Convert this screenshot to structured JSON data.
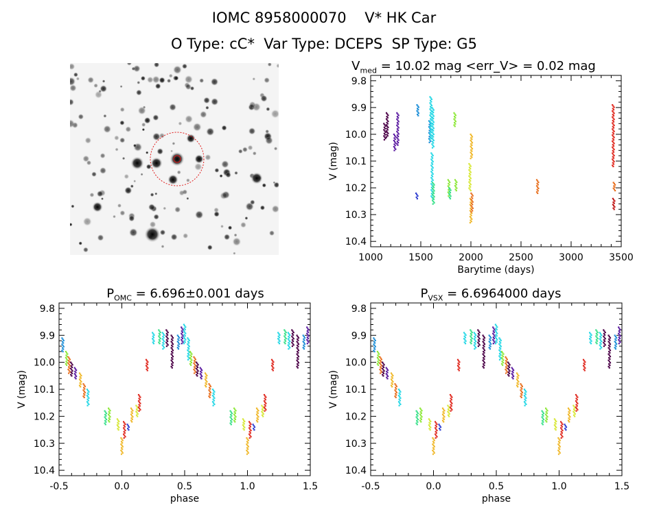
{
  "header": {
    "title_line1": "IOMC 8958000070    V* HK Car",
    "title_line2": "O Type: cC*  Var Type: DCEPS  SP Type: G5"
  },
  "colors": {
    "palette": [
      "#4a0046",
      "#5a1aa0",
      "#2a3ad0",
      "#1f8fd8",
      "#27d8e6",
      "#39e08a",
      "#8ee83a",
      "#d8e83a",
      "#f0b82a",
      "#e87020",
      "#e02a20",
      "#c01818"
    ],
    "reticle": "#e01a1a"
  },
  "chart_data": [
    {
      "type": "scatter",
      "panel": "lightcurve",
      "title_main": "V",
      "title_sub": "med",
      "title_rest": " = 10.02 mag <err_V> = 0.02 mag",
      "xlabel": "Barytime (days)",
      "ylabel": "V (mag)",
      "xlim": [
        1000,
        3500
      ],
      "ylim": [
        10.42,
        9.78
      ],
      "xticks": [
        1000,
        1500,
        2000,
        2500,
        3000,
        3500
      ],
      "yticks": [
        9.8,
        9.9,
        10.0,
        10.1,
        10.2,
        10.3,
        10.4
      ],
      "groups": [
        {
          "x": 1140,
          "ymin": 9.96,
          "ymax": 10.02,
          "c": 0
        },
        {
          "x": 1165,
          "ymin": 9.92,
          "ymax": 10.01,
          "c": 0
        },
        {
          "x": 1240,
          "ymin": 10.0,
          "ymax": 10.06,
          "c": 1
        },
        {
          "x": 1270,
          "ymin": 9.92,
          "ymax": 10.04,
          "c": 1
        },
        {
          "x": 1460,
          "ymin": 10.22,
          "ymax": 10.24,
          "c": 2
        },
        {
          "x": 1470,
          "ymin": 9.89,
          "ymax": 9.93,
          "c": 3
        },
        {
          "x": 1590,
          "ymin": 9.95,
          "ymax": 10.03,
          "c": 3
        },
        {
          "x": 1600,
          "ymin": 9.86,
          "ymax": 10.02,
          "c": 4
        },
        {
          "x": 1612,
          "ymin": 10.07,
          "ymax": 10.24,
          "c": 4
        },
        {
          "x": 1620,
          "ymin": 9.9,
          "ymax": 10.05,
          "c": 4
        },
        {
          "x": 1625,
          "ymin": 10.18,
          "ymax": 10.26,
          "c": 5
        },
        {
          "x": 1780,
          "ymin": 10.17,
          "ymax": 10.23,
          "c": 6
        },
        {
          "x": 1790,
          "ymin": 10.2,
          "ymax": 10.24,
          "c": 5
        },
        {
          "x": 1840,
          "ymin": 9.92,
          "ymax": 9.97,
          "c": 6
        },
        {
          "x": 1850,
          "ymin": 10.17,
          "ymax": 10.21,
          "c": 6
        },
        {
          "x": 1990,
          "ymin": 10.11,
          "ymax": 10.21,
          "c": 7
        },
        {
          "x": 2000,
          "ymin": 10.24,
          "ymax": 10.33,
          "c": 8
        },
        {
          "x": 2005,
          "ymin": 10.0,
          "ymax": 10.09,
          "c": 8
        },
        {
          "x": 2010,
          "ymin": 10.22,
          "ymax": 10.29,
          "c": 9
        },
        {
          "x": 2665,
          "ymin": 10.17,
          "ymax": 10.22,
          "c": 9
        },
        {
          "x": 3420,
          "ymin": 9.89,
          "ymax": 10.12,
          "c": 10
        },
        {
          "x": 3425,
          "ymin": 10.24,
          "ymax": 10.28,
          "c": 11
        },
        {
          "x": 3430,
          "ymin": 10.18,
          "ymax": 10.21,
          "c": 9
        }
      ]
    },
    {
      "type": "scatter",
      "panel": "phase_omc",
      "title_main": "P",
      "title_sub": "OMC",
      "title_rest": " = 6.696±0.001 days",
      "xlabel": "phase",
      "ylabel": "V (mag)",
      "xlim": [
        -0.5,
        1.5
      ],
      "ylim": [
        10.42,
        9.78
      ],
      "xticks": [
        -0.5,
        0.0,
        0.5,
        1.0,
        1.5
      ],
      "yticks": [
        9.8,
        9.9,
        10.0,
        10.1,
        10.2,
        10.3,
        10.4
      ],
      "groups": [
        {
          "x": -0.47,
          "ymin": 9.91,
          "ymax": 9.96,
          "c": 3
        },
        {
          "x": -0.44,
          "ymin": 9.96,
          "ymax": 10.01,
          "c": 6
        },
        {
          "x": -0.42,
          "ymin": 9.98,
          "ymax": 10.04,
          "c": 9
        },
        {
          "x": -0.4,
          "ymin": 10.0,
          "ymax": 10.05,
          "c": 0
        },
        {
          "x": -0.37,
          "ymin": 10.02,
          "ymax": 10.06,
          "c": 1
        },
        {
          "x": -0.33,
          "ymin": 10.04,
          "ymax": 10.09,
          "c": 8
        },
        {
          "x": -0.3,
          "ymin": 10.08,
          "ymax": 10.13,
          "c": 9
        },
        {
          "x": -0.27,
          "ymin": 10.1,
          "ymax": 10.16,
          "c": 4
        },
        {
          "x": -0.13,
          "ymin": 10.18,
          "ymax": 10.23,
          "c": 5
        },
        {
          "x": -0.1,
          "ymin": 10.17,
          "ymax": 10.22,
          "c": 6
        },
        {
          "x": -0.03,
          "ymin": 10.21,
          "ymax": 10.25,
          "c": 7
        },
        {
          "x": 0.0,
          "ymin": 10.28,
          "ymax": 10.34,
          "c": 8
        },
        {
          "x": 0.02,
          "ymin": 10.22,
          "ymax": 10.28,
          "c": 10
        },
        {
          "x": 0.05,
          "ymin": 10.23,
          "ymax": 10.25,
          "c": 2
        },
        {
          "x": 0.08,
          "ymin": 10.17,
          "ymax": 10.22,
          "c": 8
        },
        {
          "x": 0.12,
          "ymin": 10.16,
          "ymax": 10.2,
          "c": 7
        },
        {
          "x": 0.14,
          "ymin": 10.12,
          "ymax": 10.18,
          "c": 10
        },
        {
          "x": 0.2,
          "ymin": 9.99,
          "ymax": 10.03,
          "c": 10
        },
        {
          "x": 0.25,
          "ymin": 9.89,
          "ymax": 9.93,
          "c": 4
        },
        {
          "x": 0.3,
          "ymin": 9.88,
          "ymax": 9.93,
          "c": 5
        },
        {
          "x": 0.33,
          "ymin": 9.89,
          "ymax": 9.95,
          "c": 4
        },
        {
          "x": 0.36,
          "ymin": 9.88,
          "ymax": 9.94,
          "c": 0
        },
        {
          "x": 0.4,
          "ymin": 9.9,
          "ymax": 10.02,
          "c": 0
        },
        {
          "x": 0.45,
          "ymin": 9.9,
          "ymax": 9.95,
          "c": 3
        },
        {
          "x": 0.48,
          "ymin": 9.87,
          "ymax": 9.93,
          "c": 1
        },
        {
          "x": 0.5,
          "ymin": 9.86,
          "ymax": 9.93,
          "c": 4
        },
        {
          "x": 0.53,
          "ymin": 9.91,
          "ymax": 9.99,
          "c": 4
        },
        {
          "x": 0.55,
          "ymin": 9.96,
          "ymax": 10.01,
          "c": 6
        },
        {
          "x": 0.58,
          "ymin": 9.98,
          "ymax": 10.04,
          "c": 9
        },
        {
          "x": 0.6,
          "ymin": 10.0,
          "ymax": 10.05,
          "c": 0
        },
        {
          "x": 0.63,
          "ymin": 10.02,
          "ymax": 10.06,
          "c": 1
        },
        {
          "x": 0.67,
          "ymin": 10.04,
          "ymax": 10.09,
          "c": 8
        },
        {
          "x": 0.7,
          "ymin": 10.08,
          "ymax": 10.13,
          "c": 9
        },
        {
          "x": 0.73,
          "ymin": 10.1,
          "ymax": 10.16,
          "c": 4
        },
        {
          "x": 0.87,
          "ymin": 10.18,
          "ymax": 10.23,
          "c": 5
        },
        {
          "x": 0.9,
          "ymin": 10.17,
          "ymax": 10.22,
          "c": 6
        },
        {
          "x": 0.97,
          "ymin": 10.21,
          "ymax": 10.25,
          "c": 7
        },
        {
          "x": 1.0,
          "ymin": 10.28,
          "ymax": 10.34,
          "c": 8
        },
        {
          "x": 1.02,
          "ymin": 10.22,
          "ymax": 10.28,
          "c": 10
        },
        {
          "x": 1.05,
          "ymin": 10.23,
          "ymax": 10.25,
          "c": 2
        },
        {
          "x": 1.08,
          "ymin": 10.17,
          "ymax": 10.22,
          "c": 8
        },
        {
          "x": 1.12,
          "ymin": 10.16,
          "ymax": 10.2,
          "c": 7
        },
        {
          "x": 1.14,
          "ymin": 10.12,
          "ymax": 10.18,
          "c": 10
        },
        {
          "x": 1.2,
          "ymin": 9.99,
          "ymax": 10.03,
          "c": 10
        },
        {
          "x": 1.25,
          "ymin": 9.89,
          "ymax": 9.93,
          "c": 4
        },
        {
          "x": 1.3,
          "ymin": 9.88,
          "ymax": 9.93,
          "c": 5
        },
        {
          "x": 1.33,
          "ymin": 9.89,
          "ymax": 9.95,
          "c": 4
        },
        {
          "x": 1.36,
          "ymin": 9.88,
          "ymax": 9.94,
          "c": 0
        },
        {
          "x": 1.4,
          "ymin": 9.9,
          "ymax": 10.02,
          "c": 0
        },
        {
          "x": 1.45,
          "ymin": 9.9,
          "ymax": 9.95,
          "c": 3
        },
        {
          "x": 1.48,
          "ymin": 9.87,
          "ymax": 9.93,
          "c": 1
        }
      ]
    },
    {
      "type": "scatter",
      "panel": "phase_vsx",
      "title_main": "P",
      "title_sub": "VSX",
      "title_rest": " = 6.6964000 days",
      "xlabel": "phase",
      "ylabel": "V (mag)",
      "xlim": [
        -0.5,
        1.5
      ],
      "ylim": [
        10.42,
        9.78
      ],
      "xticks": [
        -0.5,
        0.0,
        0.5,
        1.0,
        1.5
      ],
      "yticks": [
        9.8,
        9.9,
        10.0,
        10.1,
        10.2,
        10.3,
        10.4
      ],
      "groups": [
        {
          "x": -0.47,
          "ymin": 9.91,
          "ymax": 9.96,
          "c": 3
        },
        {
          "x": -0.44,
          "ymin": 9.96,
          "ymax": 10.01,
          "c": 6
        },
        {
          "x": -0.42,
          "ymin": 9.98,
          "ymax": 10.04,
          "c": 9
        },
        {
          "x": -0.4,
          "ymin": 10.0,
          "ymax": 10.05,
          "c": 0
        },
        {
          "x": -0.37,
          "ymin": 10.02,
          "ymax": 10.06,
          "c": 1
        },
        {
          "x": -0.33,
          "ymin": 10.04,
          "ymax": 10.09,
          "c": 8
        },
        {
          "x": -0.3,
          "ymin": 10.08,
          "ymax": 10.13,
          "c": 9
        },
        {
          "x": -0.27,
          "ymin": 10.1,
          "ymax": 10.16,
          "c": 4
        },
        {
          "x": -0.13,
          "ymin": 10.18,
          "ymax": 10.23,
          "c": 5
        },
        {
          "x": -0.1,
          "ymin": 10.17,
          "ymax": 10.22,
          "c": 6
        },
        {
          "x": -0.03,
          "ymin": 10.21,
          "ymax": 10.25,
          "c": 7
        },
        {
          "x": 0.0,
          "ymin": 10.28,
          "ymax": 10.34,
          "c": 8
        },
        {
          "x": 0.02,
          "ymin": 10.22,
          "ymax": 10.28,
          "c": 10
        },
        {
          "x": 0.05,
          "ymin": 10.23,
          "ymax": 10.25,
          "c": 2
        },
        {
          "x": 0.08,
          "ymin": 10.17,
          "ymax": 10.22,
          "c": 8
        },
        {
          "x": 0.12,
          "ymin": 10.16,
          "ymax": 10.2,
          "c": 7
        },
        {
          "x": 0.14,
          "ymin": 10.12,
          "ymax": 10.18,
          "c": 10
        },
        {
          "x": 0.2,
          "ymin": 9.99,
          "ymax": 10.03,
          "c": 10
        },
        {
          "x": 0.25,
          "ymin": 9.89,
          "ymax": 9.93,
          "c": 4
        },
        {
          "x": 0.3,
          "ymin": 9.88,
          "ymax": 9.93,
          "c": 5
        },
        {
          "x": 0.33,
          "ymin": 9.89,
          "ymax": 9.95,
          "c": 4
        },
        {
          "x": 0.36,
          "ymin": 9.88,
          "ymax": 9.94,
          "c": 0
        },
        {
          "x": 0.4,
          "ymin": 9.9,
          "ymax": 10.02,
          "c": 0
        },
        {
          "x": 0.45,
          "ymin": 9.9,
          "ymax": 9.95,
          "c": 3
        },
        {
          "x": 0.48,
          "ymin": 9.87,
          "ymax": 9.93,
          "c": 1
        },
        {
          "x": 0.5,
          "ymin": 9.86,
          "ymax": 9.93,
          "c": 4
        },
        {
          "x": 0.53,
          "ymin": 9.91,
          "ymax": 9.99,
          "c": 4
        },
        {
          "x": 0.55,
          "ymin": 9.96,
          "ymax": 10.01,
          "c": 6
        },
        {
          "x": 0.58,
          "ymin": 9.98,
          "ymax": 10.04,
          "c": 9
        },
        {
          "x": 0.6,
          "ymin": 10.0,
          "ymax": 10.05,
          "c": 0
        },
        {
          "x": 0.63,
          "ymin": 10.02,
          "ymax": 10.06,
          "c": 1
        },
        {
          "x": 0.67,
          "ymin": 10.04,
          "ymax": 10.09,
          "c": 8
        },
        {
          "x": 0.7,
          "ymin": 10.08,
          "ymax": 10.13,
          "c": 9
        },
        {
          "x": 0.73,
          "ymin": 10.1,
          "ymax": 10.16,
          "c": 4
        },
        {
          "x": 0.87,
          "ymin": 10.18,
          "ymax": 10.23,
          "c": 5
        },
        {
          "x": 0.9,
          "ymin": 10.17,
          "ymax": 10.22,
          "c": 6
        },
        {
          "x": 0.97,
          "ymin": 10.21,
          "ymax": 10.25,
          "c": 7
        },
        {
          "x": 1.0,
          "ymin": 10.28,
          "ymax": 10.34,
          "c": 8
        },
        {
          "x": 1.02,
          "ymin": 10.22,
          "ymax": 10.28,
          "c": 10
        },
        {
          "x": 1.05,
          "ymin": 10.23,
          "ymax": 10.25,
          "c": 2
        },
        {
          "x": 1.08,
          "ymin": 10.17,
          "ymax": 10.22,
          "c": 8
        },
        {
          "x": 1.12,
          "ymin": 10.16,
          "ymax": 10.2,
          "c": 7
        },
        {
          "x": 1.14,
          "ymin": 10.12,
          "ymax": 10.18,
          "c": 10
        },
        {
          "x": 1.2,
          "ymin": 9.99,
          "ymax": 10.03,
          "c": 10
        },
        {
          "x": 1.25,
          "ymin": 9.89,
          "ymax": 9.93,
          "c": 4
        },
        {
          "x": 1.3,
          "ymin": 9.88,
          "ymax": 9.93,
          "c": 5
        },
        {
          "x": 1.33,
          "ymin": 9.89,
          "ymax": 9.95,
          "c": 4
        },
        {
          "x": 1.36,
          "ymin": 9.88,
          "ymax": 9.94,
          "c": 0
        },
        {
          "x": 1.4,
          "ymin": 9.9,
          "ymax": 10.02,
          "c": 0
        },
        {
          "x": 1.45,
          "ymin": 9.9,
          "ymax": 9.95,
          "c": 3
        },
        {
          "x": 1.48,
          "ymin": 9.87,
          "ymax": 9.93,
          "c": 1
        }
      ]
    }
  ]
}
